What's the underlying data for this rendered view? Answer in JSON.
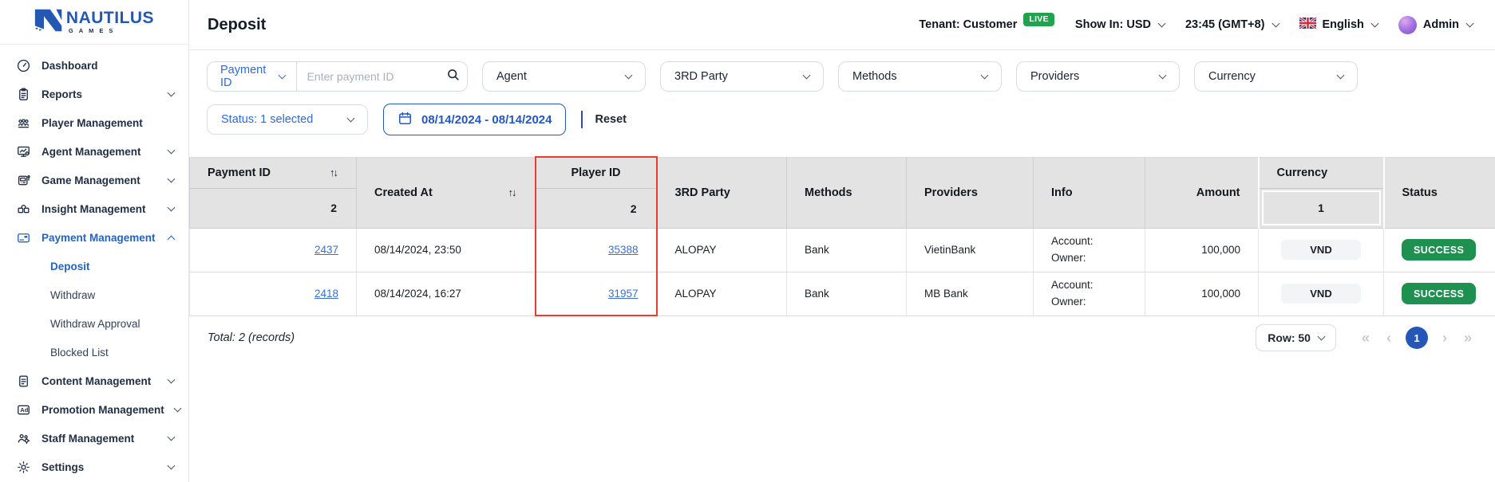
{
  "brand": {
    "name": "NAUTILUS",
    "sub": "GAMES"
  },
  "sidebar": {
    "items": [
      {
        "label": "Dashboard",
        "icon": "dashboard"
      },
      {
        "label": "Reports",
        "icon": "reports",
        "chevron": "down"
      },
      {
        "label": "Player Management",
        "icon": "players"
      },
      {
        "label": "Agent Management",
        "icon": "agent",
        "chevron": "down"
      },
      {
        "label": "Game Management",
        "icon": "game",
        "chevron": "down"
      },
      {
        "label": "Insight Management",
        "icon": "insight",
        "chevron": "down"
      },
      {
        "label": "Payment Management",
        "icon": "payment",
        "chevron": "up",
        "active": true,
        "children": [
          {
            "label": "Deposit",
            "active": true
          },
          {
            "label": "Withdraw"
          },
          {
            "label": "Withdraw Approval"
          },
          {
            "label": "Blocked List"
          }
        ]
      },
      {
        "label": "Content Management",
        "icon": "content",
        "chevron": "down"
      },
      {
        "label": "Promotion Management",
        "icon": "promotion",
        "chevron": "down"
      },
      {
        "label": "Staff Management",
        "icon": "staff",
        "chevron": "down"
      },
      {
        "label": "Settings",
        "icon": "settings",
        "chevron": "down"
      }
    ]
  },
  "topbar": {
    "title": "Deposit",
    "tenant": "Tenant: Customer",
    "live": "LIVE",
    "show_in": "Show In: USD",
    "time": "23:45 (GMT+8)",
    "language": "English",
    "user": "Admin"
  },
  "filters": {
    "search_field": {
      "label": "Payment ID",
      "placeholder": "Enter payment ID"
    },
    "dropdowns": [
      "Agent",
      "3RD Party",
      "Methods",
      "Providers",
      "Currency"
    ],
    "status": "Status: 1 selected",
    "date_range": "08/14/2024 - 08/14/2024",
    "reset": "Reset"
  },
  "table": {
    "columns": [
      {
        "key": "payment_id",
        "label": "Payment ID",
        "count": "2",
        "sortable": true,
        "align": "right",
        "link": true
      },
      {
        "key": "created_at",
        "label": "Created At",
        "sortable": true,
        "align": "left"
      },
      {
        "key": "player_id",
        "label": "Player ID",
        "count": "2",
        "align": "right",
        "highlighted": true,
        "link": true,
        "center_label": true
      },
      {
        "key": "third_party",
        "label": "3RD Party",
        "align": "left"
      },
      {
        "key": "methods",
        "label": "Methods",
        "align": "left"
      },
      {
        "key": "providers",
        "label": "Providers",
        "align": "left"
      },
      {
        "key": "info",
        "label": "Info",
        "align": "left"
      },
      {
        "key": "amount",
        "label": "Amount",
        "align": "right"
      },
      {
        "key": "currency",
        "label": "Currency",
        "count": "1",
        "align": "center"
      },
      {
        "key": "status",
        "label": "Status",
        "align": "left"
      }
    ],
    "rows": [
      {
        "payment_id": "2437",
        "created_at": "08/14/2024, 23:50",
        "player_id": "35388",
        "third_party": "ALOPAY",
        "methods": "Bank",
        "providers": "VietinBank",
        "info_lines": [
          "Account:",
          "Owner:"
        ],
        "amount": "100,000",
        "currency": "VND",
        "status": "SUCCESS"
      },
      {
        "payment_id": "2418",
        "created_at": "08/14/2024, 16:27",
        "player_id": "31957",
        "third_party": "ALOPAY",
        "methods": "Bank",
        "providers": "MB Bank",
        "info_lines": [
          "Account:",
          "Owner:"
        ],
        "amount": "100,000",
        "currency": "VND",
        "status": "SUCCESS"
      }
    ]
  },
  "footer": {
    "total": "Total: 2 (records)",
    "row_select": "Row: 50",
    "page": "1",
    "pagination": {
      "first": "«",
      "prev": "‹",
      "next": "›",
      "last": "»"
    }
  },
  "icons": {
    "sort": "↑↓"
  },
  "colors": {
    "accent_blue": "#2457b8",
    "link_blue": "#3a6fd6",
    "filter_blue": "#2d6ae3",
    "live_green": "#1fa34d",
    "success_green": "#1e9150",
    "highlight_red": "#ed3b2f",
    "header_gray": "#e3e3e3"
  }
}
